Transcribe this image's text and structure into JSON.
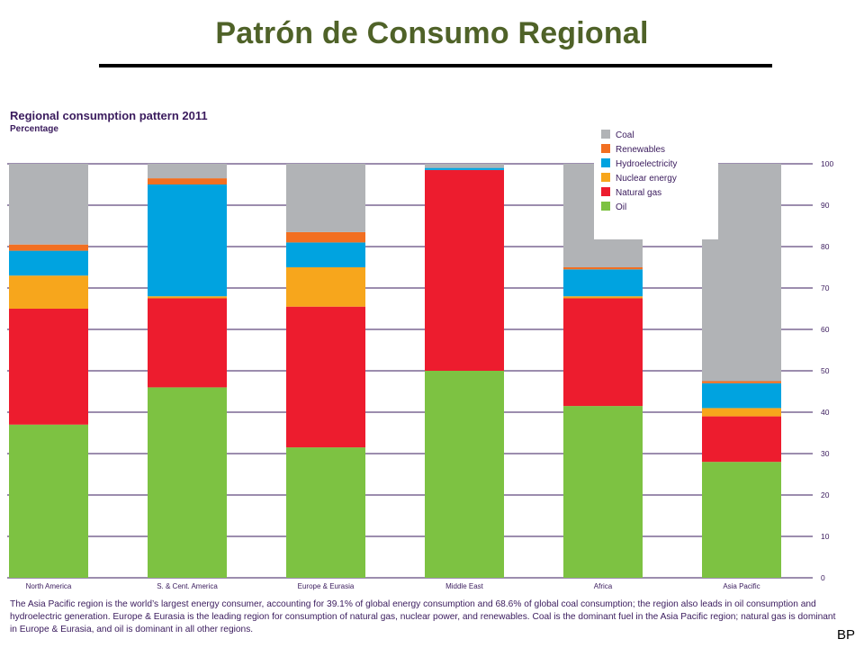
{
  "slide": {
    "title": "Patrón de Consumo Regional",
    "source": "BP"
  },
  "chart_data": {
    "type": "bar",
    "stacked": true,
    "title": "Regional consumption pattern 2011",
    "subtitle": "Percentage",
    "categories": [
      "North America",
      "S. & Cent. America",
      "Europe & Eurasia",
      "Middle East",
      "Africa",
      "Asia Pacific"
    ],
    "series": [
      {
        "name": "Oil",
        "color": "#7dc242",
        "values": [
          37,
          46,
          31.5,
          50,
          41.5,
          28
        ]
      },
      {
        "name": "Natural gas",
        "color": "#ed1c2e",
        "values": [
          28,
          21.5,
          34,
          48.5,
          26,
          11
        ]
      },
      {
        "name": "Nuclear energy",
        "color": "#f7a61c",
        "values": [
          8,
          0.5,
          9.5,
          0,
          0.5,
          2
        ]
      },
      {
        "name": "Hydroelectricity",
        "color": "#00a3e0",
        "values": [
          6,
          27,
          6,
          0.5,
          6.5,
          6
        ]
      },
      {
        "name": "Renewables",
        "color": "#f26f21",
        "values": [
          1.5,
          1.5,
          2.5,
          0,
          0.5,
          0.5
        ]
      },
      {
        "name": "Coal",
        "color": "#b1b3b6",
        "values": [
          19.5,
          3.5,
          16.5,
          1,
          25,
          52.5
        ]
      }
    ],
    "legend_order": [
      "Coal",
      "Renewables",
      "Hydroelectricity",
      "Nuclear energy",
      "Natural gas",
      "Oil"
    ],
    "legend_position": "top-right",
    "ylim": [
      0,
      100
    ],
    "yticks": [
      0,
      10,
      20,
      30,
      40,
      50,
      60,
      70,
      80,
      90,
      100
    ],
    "y_axis_side": "right",
    "grid": true,
    "caption": "The Asia Pacific region is the world’s largest energy consumer, accounting for 39.1% of global energy consumption and 68.6% of global coal consumption; the region also leads in oil consumption and hydroelectric generation. Europe & Eurasia is the leading region for consumption of natural gas, nuclear power, and renewables. Coal is the dominant fuel in the Asia Pacific region; natural gas is dominant in Europe & Eurasia, and oil is dominant in all other regions."
  }
}
